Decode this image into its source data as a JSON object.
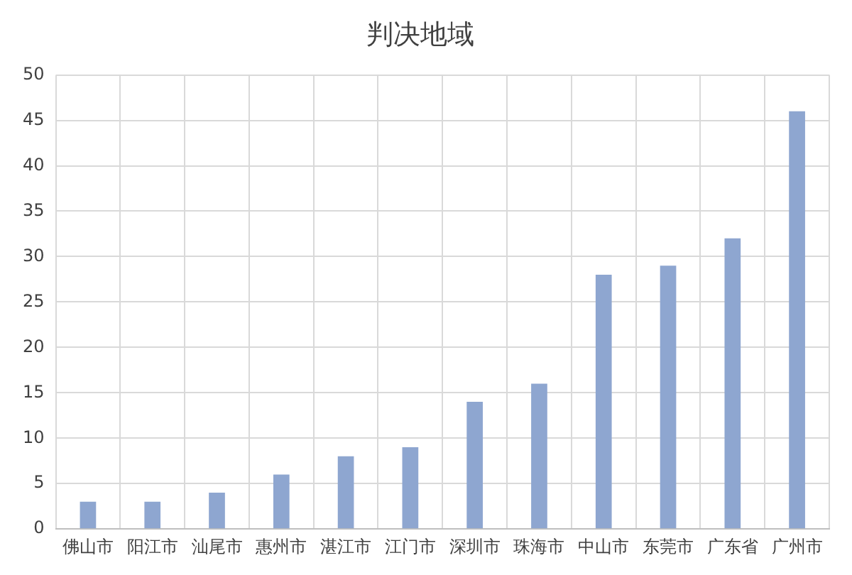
{
  "chart_data": {
    "type": "bar",
    "title": "判决地域",
    "categories": [
      "佛山市",
      "阳江市",
      "汕尾市",
      "惠州市",
      "湛江市",
      "江门市",
      "深圳市",
      "珠海市",
      "中山市",
      "东莞市",
      "广东省",
      "广州市"
    ],
    "values": [
      3,
      3,
      4,
      6,
      8,
      9,
      14,
      16,
      28,
      29,
      32,
      46
    ],
    "color": "#8ea6d0",
    "ylim": [
      0,
      50
    ],
    "yticks": [
      0,
      5,
      10,
      15,
      20,
      25,
      30,
      35,
      40,
      45,
      50
    ],
    "grid": true
  }
}
